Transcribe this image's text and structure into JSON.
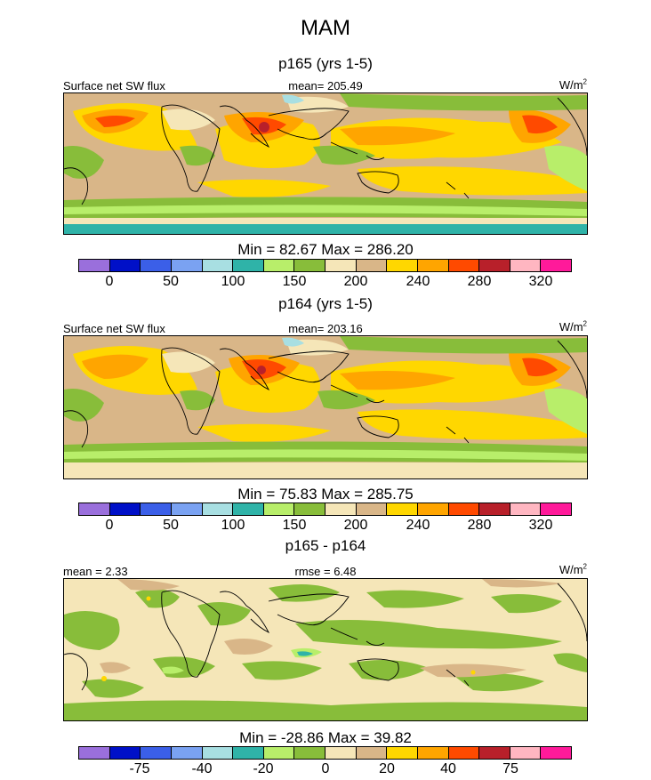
{
  "title": "MAM",
  "units_html": "W/m",
  "units_sup": "2",
  "panels": [
    {
      "title": "p165 (yrs 1-5)",
      "left_label": "Surface net SW flux",
      "center_label": "mean= 205.49",
      "minmax": "Min =  82.67 Max = 286.20",
      "ticks": [
        "0",
        "50",
        "100",
        "150",
        "200",
        "240",
        "280",
        "320"
      ]
    },
    {
      "title": "p164 (yrs 1-5)",
      "left_label": "Surface net SW flux",
      "center_label": "mean= 203.16",
      "minmax": "Min =  75.83 Max = 285.75",
      "ticks": [
        "0",
        "50",
        "100",
        "150",
        "200",
        "240",
        "280",
        "320"
      ]
    },
    {
      "title": "p165 - p164",
      "left_label": "mean =   2.33",
      "center_label": "rmse =   6.48",
      "minmax": "Min = -28.86 Max =  39.82",
      "ticks": [
        "-75",
        "-40",
        "-20",
        "0",
        "20",
        "40",
        "75"
      ]
    }
  ],
  "colorbar_colors": [
    "#9a6fdc",
    "#0010c8",
    "#3b5fe8",
    "#7aa2f2",
    "#a8dfe2",
    "#2fb3a8",
    "#b8ee6a",
    "#88bd3a",
    "#f5e6b8",
    "#d9b688",
    "#ffd700",
    "#ffa500",
    "#ff4a00",
    "#b8202a",
    "#ffb6c1",
    "#ff1a9a"
  ],
  "map_colors": {
    "c150": "#88bd3a",
    "c200": "#f5e6b8",
    "c220": "#d9b688",
    "c240": "#ffd700",
    "c260": "#ffa500",
    "c280": "#ff4a00",
    "c300": "#b8202a",
    "c110": "#b8ee6a",
    "c100": "#2fb3a8",
    "c90": "#a8dfe2",
    "coast": "#000000"
  }
}
